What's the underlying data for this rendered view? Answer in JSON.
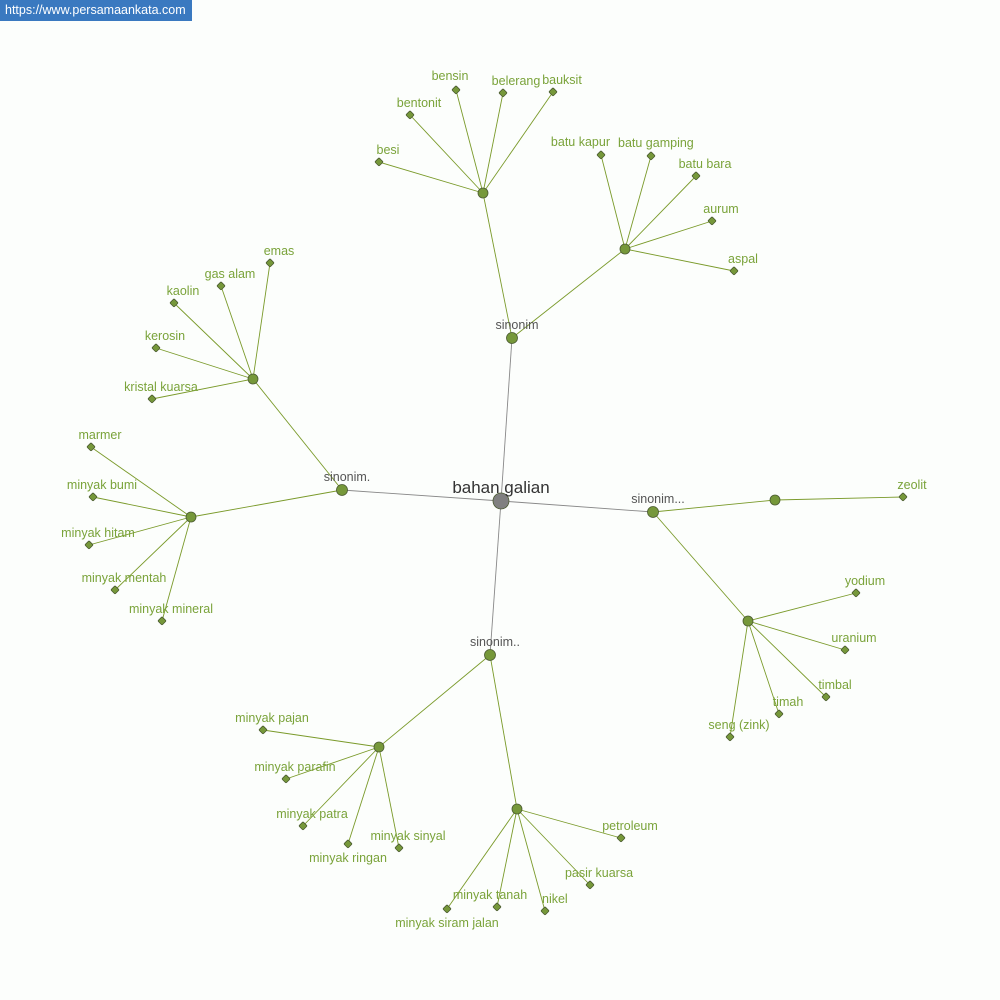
{
  "watermark": "https://www.persamaankata.com",
  "colors": {
    "edge": "#7a9a2a",
    "root_edge": "#888888",
    "node": "#76983a",
    "root_node": "#808080",
    "leaf_text": "#7aa33a",
    "hub_text": "#555555"
  },
  "graph": {
    "root": "bahan galian",
    "groups": [
      {
        "label": "sinonim",
        "hubs": [
          {
            "leaves": [
              "besi",
              "bentonit",
              "bensin",
              "belerang",
              "bauksit"
            ]
          },
          {
            "leaves": [
              "batu kapur",
              "batu gamping",
              "batu bara",
              "aurum",
              "aspal"
            ]
          }
        ]
      },
      {
        "label": "sinonim.",
        "hubs": [
          {
            "leaves": [
              "emas",
              "gas alam",
              "kaolin",
              "kerosin",
              "kristal kuarsa"
            ]
          },
          {
            "leaves": [
              "marmer",
              "minyak bumi",
              "minyak hitam",
              "minyak mentah",
              "minyak mineral"
            ]
          }
        ]
      },
      {
        "label": "sinonim...",
        "hubs": [
          {
            "leaves": [
              "zeolit"
            ]
          },
          {
            "leaves": [
              "yodium",
              "uranium",
              "timbal",
              "timah",
              "seng (zink)"
            ]
          }
        ]
      },
      {
        "label": "sinonim..",
        "hubs": [
          {
            "leaves": [
              "minyak pajan",
              "minyak parafin",
              "minyak patra",
              "minyak ringan",
              "minyak sinyal"
            ]
          },
          {
            "leaves": [
              "petroleum",
              "pasir kuarsa",
              "nikel",
              "minyak tanah",
              "minyak siram jalan"
            ]
          }
        ]
      }
    ]
  }
}
